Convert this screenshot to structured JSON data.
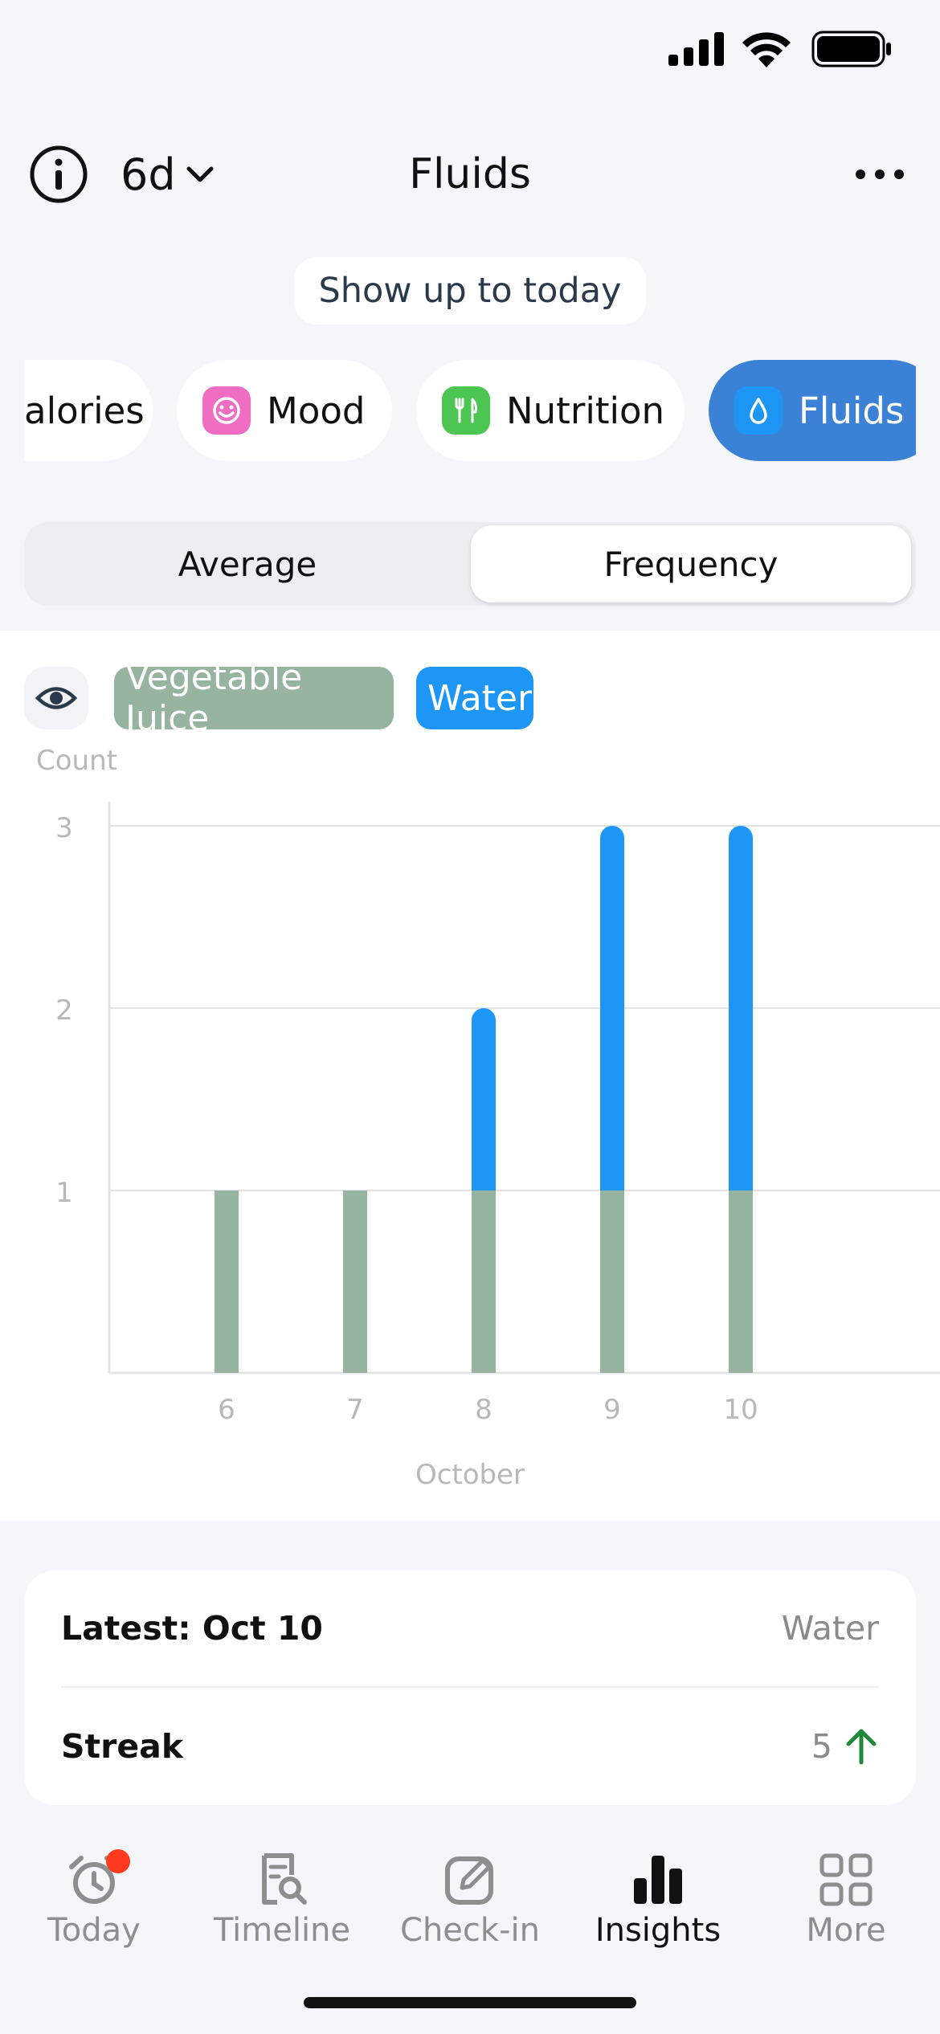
{
  "status_bar": {
    "icons": [
      "cellular-signal-icon",
      "wifi-icon",
      "battery-icon"
    ]
  },
  "header": {
    "range": "6d",
    "title": "Fluids",
    "icons": [
      "info-icon",
      "chevron-down-icon",
      "more-horizontal-icon"
    ]
  },
  "today_toggle": "Show up to today",
  "categories": [
    {
      "label": "alories",
      "selected": false
    },
    {
      "label": "Mood",
      "icon": "smiley-icon",
      "color": "#f06dc4",
      "selected": false
    },
    {
      "label": "Nutrition",
      "icon": "utensils-icon",
      "color": "#4cc552",
      "selected": false
    },
    {
      "label": "Fluids",
      "icon": "drop-icon",
      "color": "#1e96f5",
      "selected": true
    }
  ],
  "segments": {
    "average": "Average",
    "frequency": "Frequency",
    "selected": "Frequency"
  },
  "legend": {
    "vegetable_juice": "Vegetable Juice",
    "water": "Water",
    "vegetable_juice_color": "#97b4a1",
    "water_color": "#1e96f5"
  },
  "chart_data": {
    "type": "bar",
    "stacked": true,
    "ylabel": "Count",
    "xlabel": "October",
    "categories": [
      "6",
      "7",
      "8",
      "9",
      "10"
    ],
    "yticks": [
      "1",
      "2",
      "3"
    ],
    "ylim": [
      0,
      3
    ],
    "grid": true,
    "series": [
      {
        "name": "Vegetable Juice",
        "color": "#97b4a1",
        "values": [
          1,
          1,
          1,
          1,
          1
        ]
      },
      {
        "name": "Water",
        "color": "#1e96f5",
        "values": [
          0,
          0,
          1,
          2,
          2
        ]
      }
    ]
  },
  "stats": {
    "latest_label": "Latest: Oct 10",
    "latest_value": "Water",
    "streak_label": "Streak",
    "streak_value": "5",
    "streak_trend_color": "#1f8a3a"
  },
  "tabs": [
    {
      "label": "Today",
      "icon": "alarm-clock-icon",
      "badge": true
    },
    {
      "label": "Timeline",
      "icon": "document-search-icon"
    },
    {
      "label": "Check-in",
      "icon": "edit-square-icon"
    },
    {
      "label": "Insights",
      "icon": "bar-chart-icon",
      "active": true
    },
    {
      "label": "More",
      "icon": "grid-icon"
    }
  ]
}
